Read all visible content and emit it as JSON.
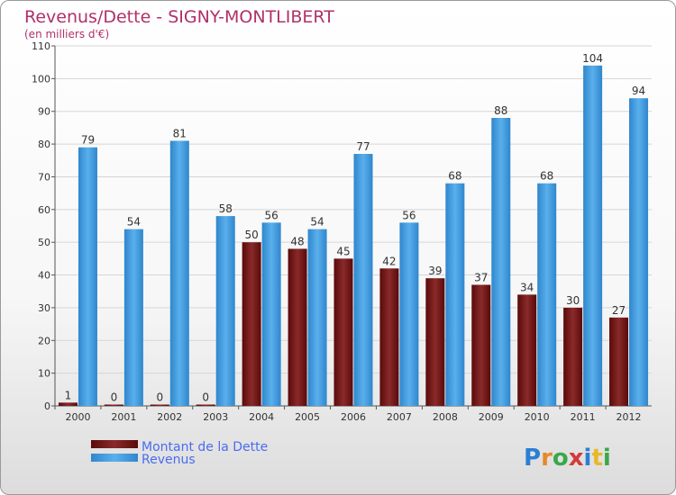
{
  "chart_data": {
    "type": "bar",
    "title": "Revenus/Dette - SIGNY-MONTLIBERT",
    "subtitle": "(en milliers d'€)",
    "categories": [
      "2000",
      "2001",
      "2002",
      "2003",
      "2004",
      "2005",
      "2006",
      "2007",
      "2008",
      "2009",
      "2010",
      "2011",
      "2012"
    ],
    "series": [
      {
        "name": "Montant de la Dette",
        "color": "#7a1515",
        "values": [
          1,
          0,
          0,
          0,
          50,
          48,
          45,
          42,
          39,
          37,
          34,
          30,
          27
        ]
      },
      {
        "name": "Revenus",
        "color": "#3a98dc",
        "values": [
          79,
          54,
          81,
          58,
          56,
          54,
          77,
          56,
          68,
          88,
          68,
          104,
          94
        ]
      }
    ],
    "ylim": [
      0,
      110
    ],
    "yticks": [
      0,
      10,
      20,
      30,
      40,
      50,
      60,
      70,
      80,
      90,
      100,
      110
    ],
    "grid": true,
    "legend": "bottom-left"
  },
  "branding": {
    "logo_text": "Proxiti"
  }
}
